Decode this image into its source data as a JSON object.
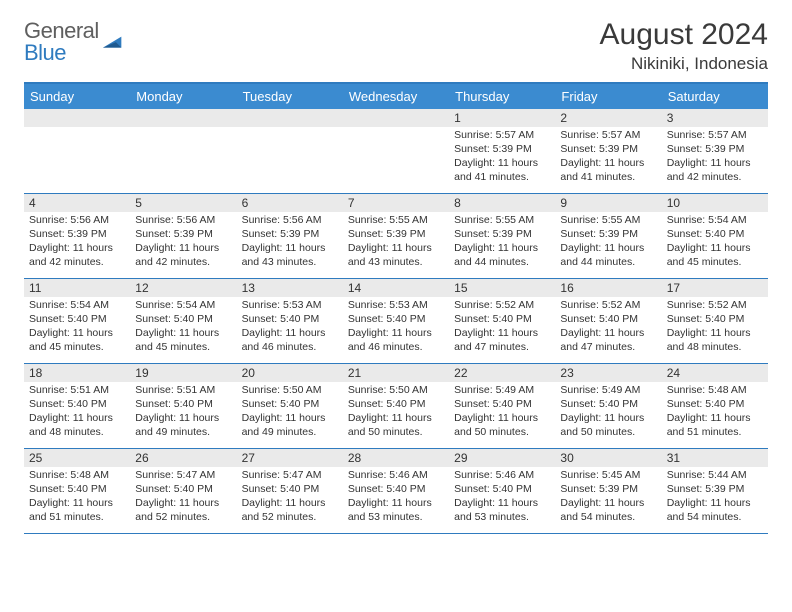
{
  "logo": {
    "line1": "General",
    "line2": "Blue"
  },
  "title": "August 2024",
  "location": "Nikiniki, Indonesia",
  "colors": {
    "header_bg": "#3b8bd0",
    "border": "#2f7bbf",
    "date_bg": "#eaeaea",
    "text": "#333333",
    "logo_gray": "#5f5f5f",
    "logo_blue": "#2f7bbf"
  },
  "dayNames": [
    "Sunday",
    "Monday",
    "Tuesday",
    "Wednesday",
    "Thursday",
    "Friday",
    "Saturday"
  ],
  "weeks": [
    [
      {
        "date": "",
        "sunrise": "",
        "sunset": "",
        "daylight": ""
      },
      {
        "date": "",
        "sunrise": "",
        "sunset": "",
        "daylight": ""
      },
      {
        "date": "",
        "sunrise": "",
        "sunset": "",
        "daylight": ""
      },
      {
        "date": "",
        "sunrise": "",
        "sunset": "",
        "daylight": ""
      },
      {
        "date": "1",
        "sunrise": "Sunrise: 5:57 AM",
        "sunset": "Sunset: 5:39 PM",
        "daylight": "Daylight: 11 hours and 41 minutes."
      },
      {
        "date": "2",
        "sunrise": "Sunrise: 5:57 AM",
        "sunset": "Sunset: 5:39 PM",
        "daylight": "Daylight: 11 hours and 41 minutes."
      },
      {
        "date": "3",
        "sunrise": "Sunrise: 5:57 AM",
        "sunset": "Sunset: 5:39 PM",
        "daylight": "Daylight: 11 hours and 42 minutes."
      }
    ],
    [
      {
        "date": "4",
        "sunrise": "Sunrise: 5:56 AM",
        "sunset": "Sunset: 5:39 PM",
        "daylight": "Daylight: 11 hours and 42 minutes."
      },
      {
        "date": "5",
        "sunrise": "Sunrise: 5:56 AM",
        "sunset": "Sunset: 5:39 PM",
        "daylight": "Daylight: 11 hours and 42 minutes."
      },
      {
        "date": "6",
        "sunrise": "Sunrise: 5:56 AM",
        "sunset": "Sunset: 5:39 PM",
        "daylight": "Daylight: 11 hours and 43 minutes."
      },
      {
        "date": "7",
        "sunrise": "Sunrise: 5:55 AM",
        "sunset": "Sunset: 5:39 PM",
        "daylight": "Daylight: 11 hours and 43 minutes."
      },
      {
        "date": "8",
        "sunrise": "Sunrise: 5:55 AM",
        "sunset": "Sunset: 5:39 PM",
        "daylight": "Daylight: 11 hours and 44 minutes."
      },
      {
        "date": "9",
        "sunrise": "Sunrise: 5:55 AM",
        "sunset": "Sunset: 5:39 PM",
        "daylight": "Daylight: 11 hours and 44 minutes."
      },
      {
        "date": "10",
        "sunrise": "Sunrise: 5:54 AM",
        "sunset": "Sunset: 5:40 PM",
        "daylight": "Daylight: 11 hours and 45 minutes."
      }
    ],
    [
      {
        "date": "11",
        "sunrise": "Sunrise: 5:54 AM",
        "sunset": "Sunset: 5:40 PM",
        "daylight": "Daylight: 11 hours and 45 minutes."
      },
      {
        "date": "12",
        "sunrise": "Sunrise: 5:54 AM",
        "sunset": "Sunset: 5:40 PM",
        "daylight": "Daylight: 11 hours and 45 minutes."
      },
      {
        "date": "13",
        "sunrise": "Sunrise: 5:53 AM",
        "sunset": "Sunset: 5:40 PM",
        "daylight": "Daylight: 11 hours and 46 minutes."
      },
      {
        "date": "14",
        "sunrise": "Sunrise: 5:53 AM",
        "sunset": "Sunset: 5:40 PM",
        "daylight": "Daylight: 11 hours and 46 minutes."
      },
      {
        "date": "15",
        "sunrise": "Sunrise: 5:52 AM",
        "sunset": "Sunset: 5:40 PM",
        "daylight": "Daylight: 11 hours and 47 minutes."
      },
      {
        "date": "16",
        "sunrise": "Sunrise: 5:52 AM",
        "sunset": "Sunset: 5:40 PM",
        "daylight": "Daylight: 11 hours and 47 minutes."
      },
      {
        "date": "17",
        "sunrise": "Sunrise: 5:52 AM",
        "sunset": "Sunset: 5:40 PM",
        "daylight": "Daylight: 11 hours and 48 minutes."
      }
    ],
    [
      {
        "date": "18",
        "sunrise": "Sunrise: 5:51 AM",
        "sunset": "Sunset: 5:40 PM",
        "daylight": "Daylight: 11 hours and 48 minutes."
      },
      {
        "date": "19",
        "sunrise": "Sunrise: 5:51 AM",
        "sunset": "Sunset: 5:40 PM",
        "daylight": "Daylight: 11 hours and 49 minutes."
      },
      {
        "date": "20",
        "sunrise": "Sunrise: 5:50 AM",
        "sunset": "Sunset: 5:40 PM",
        "daylight": "Daylight: 11 hours and 49 minutes."
      },
      {
        "date": "21",
        "sunrise": "Sunrise: 5:50 AM",
        "sunset": "Sunset: 5:40 PM",
        "daylight": "Daylight: 11 hours and 50 minutes."
      },
      {
        "date": "22",
        "sunrise": "Sunrise: 5:49 AM",
        "sunset": "Sunset: 5:40 PM",
        "daylight": "Daylight: 11 hours and 50 minutes."
      },
      {
        "date": "23",
        "sunrise": "Sunrise: 5:49 AM",
        "sunset": "Sunset: 5:40 PM",
        "daylight": "Daylight: 11 hours and 50 minutes."
      },
      {
        "date": "24",
        "sunrise": "Sunrise: 5:48 AM",
        "sunset": "Sunset: 5:40 PM",
        "daylight": "Daylight: 11 hours and 51 minutes."
      }
    ],
    [
      {
        "date": "25",
        "sunrise": "Sunrise: 5:48 AM",
        "sunset": "Sunset: 5:40 PM",
        "daylight": "Daylight: 11 hours and 51 minutes."
      },
      {
        "date": "26",
        "sunrise": "Sunrise: 5:47 AM",
        "sunset": "Sunset: 5:40 PM",
        "daylight": "Daylight: 11 hours and 52 minutes."
      },
      {
        "date": "27",
        "sunrise": "Sunrise: 5:47 AM",
        "sunset": "Sunset: 5:40 PM",
        "daylight": "Daylight: 11 hours and 52 minutes."
      },
      {
        "date": "28",
        "sunrise": "Sunrise: 5:46 AM",
        "sunset": "Sunset: 5:40 PM",
        "daylight": "Daylight: 11 hours and 53 minutes."
      },
      {
        "date": "29",
        "sunrise": "Sunrise: 5:46 AM",
        "sunset": "Sunset: 5:40 PM",
        "daylight": "Daylight: 11 hours and 53 minutes."
      },
      {
        "date": "30",
        "sunrise": "Sunrise: 5:45 AM",
        "sunset": "Sunset: 5:39 PM",
        "daylight": "Daylight: 11 hours and 54 minutes."
      },
      {
        "date": "31",
        "sunrise": "Sunrise: 5:44 AM",
        "sunset": "Sunset: 5:39 PM",
        "daylight": "Daylight: 11 hours and 54 minutes."
      }
    ]
  ]
}
